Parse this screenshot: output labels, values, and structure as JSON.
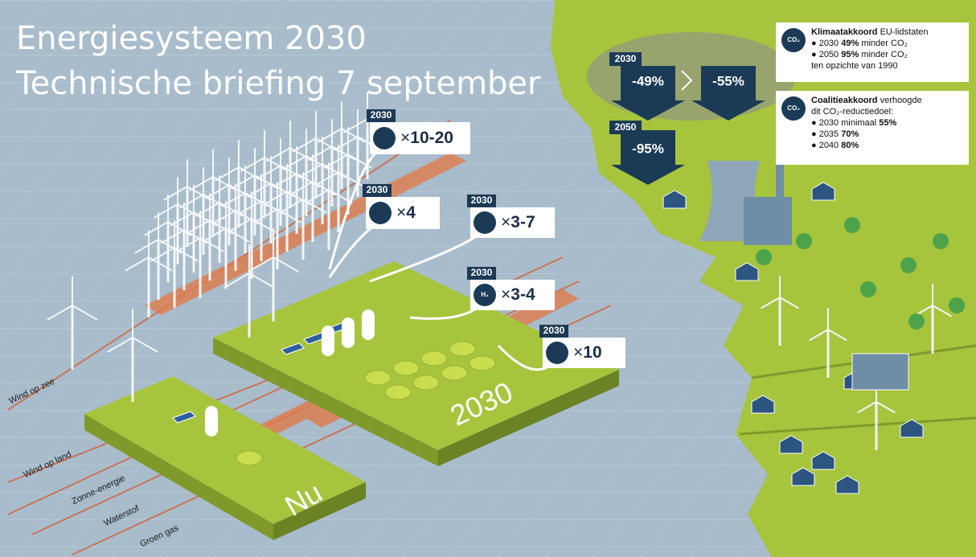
{
  "title": {
    "line1": "Energiesysteem 2030",
    "line2": "Technische briefing 7 september"
  },
  "callouts": [
    {
      "year": "2030",
      "times": "×",
      "factor": "10-20"
    },
    {
      "year": "2030",
      "times": "×",
      "factor": "4"
    },
    {
      "year": "2030",
      "times": "×",
      "factor": "3-7"
    },
    {
      "year": "2030",
      "icon": "H₂",
      "times": "×",
      "factor": "3-4"
    },
    {
      "year": "2030",
      "times": "×",
      "factor": "10"
    }
  ],
  "reductions": {
    "year_2030": "2030",
    "eu_2030": "-49%",
    "coalition_2030": "-55%",
    "year_2050": "2050",
    "eu_2050": "-95%"
  },
  "info_boxes": [
    {
      "icon": "CO₂",
      "heading": "Klimaatakkoord",
      "heading_rest": " EU-lidstaten",
      "bullets": [
        {
          "pre": "● 2030 ",
          "bold": "49%",
          "post": " minder CO₂"
        },
        {
          "pre": "● 2050 ",
          "bold": "95%",
          "post": " minder CO₂"
        }
      ],
      "tail": "ten opzichte van 1990"
    },
    {
      "icon": "CO₂",
      "heading": "Coalitieakkoord",
      "heading_rest": " verhoogde",
      "tail": "dit CO₂-reductiedoel:",
      "bullets": [
        {
          "pre": "● 2030 minimaal ",
          "bold": "55%",
          "post": ""
        },
        {
          "pre": "● 2035 ",
          "bold": "70%",
          "post": ""
        },
        {
          "pre": "● 2040 ",
          "bold": "80%",
          "post": ""
        }
      ]
    }
  ],
  "platforms": {
    "future": "2030",
    "now": "Nu"
  },
  "lanes": [
    "Wind op zee",
    "Wind op land",
    "Zonne-energie",
    "Waterstof",
    "Groen gas"
  ]
}
